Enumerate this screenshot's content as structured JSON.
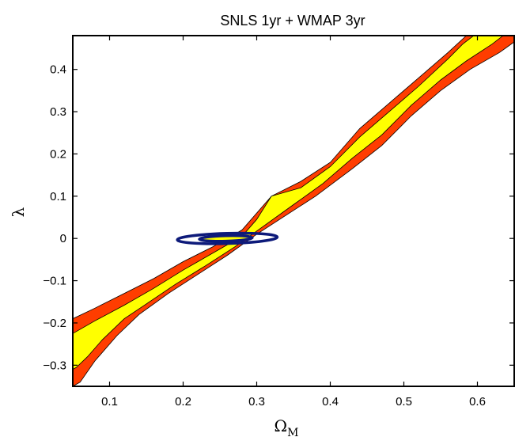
{
  "chart_data": {
    "type": "contour",
    "title": "SNLS 1yr + WMAP 3yr",
    "xlabel": "Ω",
    "xlabel_subscript": "M",
    "ylabel": "λ",
    "xlim": [
      0.05,
      0.65
    ],
    "ylim": [
      -0.35,
      0.48
    ],
    "x_ticks": [
      0.1,
      0.2,
      0.3,
      0.4,
      0.5,
      0.6
    ],
    "x_tick_labels": [
      "0.1",
      "0.2",
      "0.3",
      "0.4",
      "0.5",
      "0.6"
    ],
    "y_ticks": [
      0.4,
      0.3,
      0.2,
      0.1,
      0,
      -0.1,
      -0.2,
      -0.3
    ],
    "y_tick_labels": [
      "0.4",
      "0.3",
      "0.2",
      "0.1",
      "0",
      "−0.1",
      "−0.2",
      "−0.3"
    ],
    "grid": false,
    "colors": {
      "outer_band": "#ff3d00",
      "inner_band": "#ffff00",
      "ellipse": "#0d1a7a"
    },
    "regions": [
      {
        "level": "outer",
        "polygon": [
          [
            0.05,
            -0.19
          ],
          [
            0.08,
            -0.165
          ],
          [
            0.12,
            -0.13
          ],
          [
            0.16,
            -0.095
          ],
          [
            0.2,
            -0.055
          ],
          [
            0.24,
            -0.02
          ],
          [
            0.28,
            0.02
          ],
          [
            0.32,
            0.1
          ],
          [
            0.36,
            0.135
          ],
          [
            0.4,
            0.18
          ],
          [
            0.44,
            0.26
          ],
          [
            0.48,
            0.32
          ],
          [
            0.52,
            0.38
          ],
          [
            0.56,
            0.44
          ],
          [
            0.585,
            0.48
          ],
          [
            0.65,
            0.48
          ],
          [
            0.65,
            0.465
          ],
          [
            0.63,
            0.44
          ],
          [
            0.59,
            0.4
          ],
          [
            0.55,
            0.35
          ],
          [
            0.51,
            0.29
          ],
          [
            0.47,
            0.22
          ],
          [
            0.43,
            0.165
          ],
          [
            0.38,
            0.1
          ],
          [
            0.34,
            0.055
          ],
          [
            0.3,
            0.01
          ],
          [
            0.26,
            -0.04
          ],
          [
            0.22,
            -0.085
          ],
          [
            0.18,
            -0.13
          ],
          [
            0.14,
            -0.18
          ],
          [
            0.11,
            -0.23
          ],
          [
            0.08,
            -0.29
          ],
          [
            0.06,
            -0.34
          ],
          [
            0.05,
            -0.35
          ]
        ]
      },
      {
        "level": "inner",
        "polygon": [
          [
            0.05,
            -0.225
          ],
          [
            0.08,
            -0.195
          ],
          [
            0.12,
            -0.158
          ],
          [
            0.16,
            -0.118
          ],
          [
            0.2,
            -0.075
          ],
          [
            0.24,
            -0.035
          ],
          [
            0.28,
            0.005
          ],
          [
            0.3,
            0.045
          ],
          [
            0.32,
            0.1
          ],
          [
            0.36,
            0.12
          ],
          [
            0.4,
            0.17
          ],
          [
            0.44,
            0.24
          ],
          [
            0.48,
            0.3
          ],
          [
            0.52,
            0.36
          ],
          [
            0.56,
            0.425
          ],
          [
            0.58,
            0.46
          ],
          [
            0.595,
            0.48
          ],
          [
            0.635,
            0.48
          ],
          [
            0.62,
            0.46
          ],
          [
            0.585,
            0.42
          ],
          [
            0.55,
            0.375
          ],
          [
            0.51,
            0.315
          ],
          [
            0.47,
            0.245
          ],
          [
            0.43,
            0.19
          ],
          [
            0.39,
            0.13
          ],
          [
            0.35,
            0.08
          ],
          [
            0.31,
            0.03
          ],
          [
            0.27,
            -0.02
          ],
          [
            0.23,
            -0.065
          ],
          [
            0.19,
            -0.108
          ],
          [
            0.15,
            -0.155
          ],
          [
            0.12,
            -0.19
          ],
          [
            0.09,
            -0.24
          ],
          [
            0.07,
            -0.28
          ],
          [
            0.055,
            -0.305
          ],
          [
            0.05,
            -0.31
          ]
        ]
      }
    ],
    "ellipses": [
      {
        "level": "outer",
        "center": [
          0.26,
          0.0
        ],
        "semi_axes": [
          0.068,
          0.012
        ],
        "angle_deg": -1.6
      },
      {
        "level": "inner",
        "center": [
          0.258,
          0.0
        ],
        "semi_axes": [
          0.036,
          0.0065
        ],
        "angle_deg": -1.6
      }
    ]
  }
}
